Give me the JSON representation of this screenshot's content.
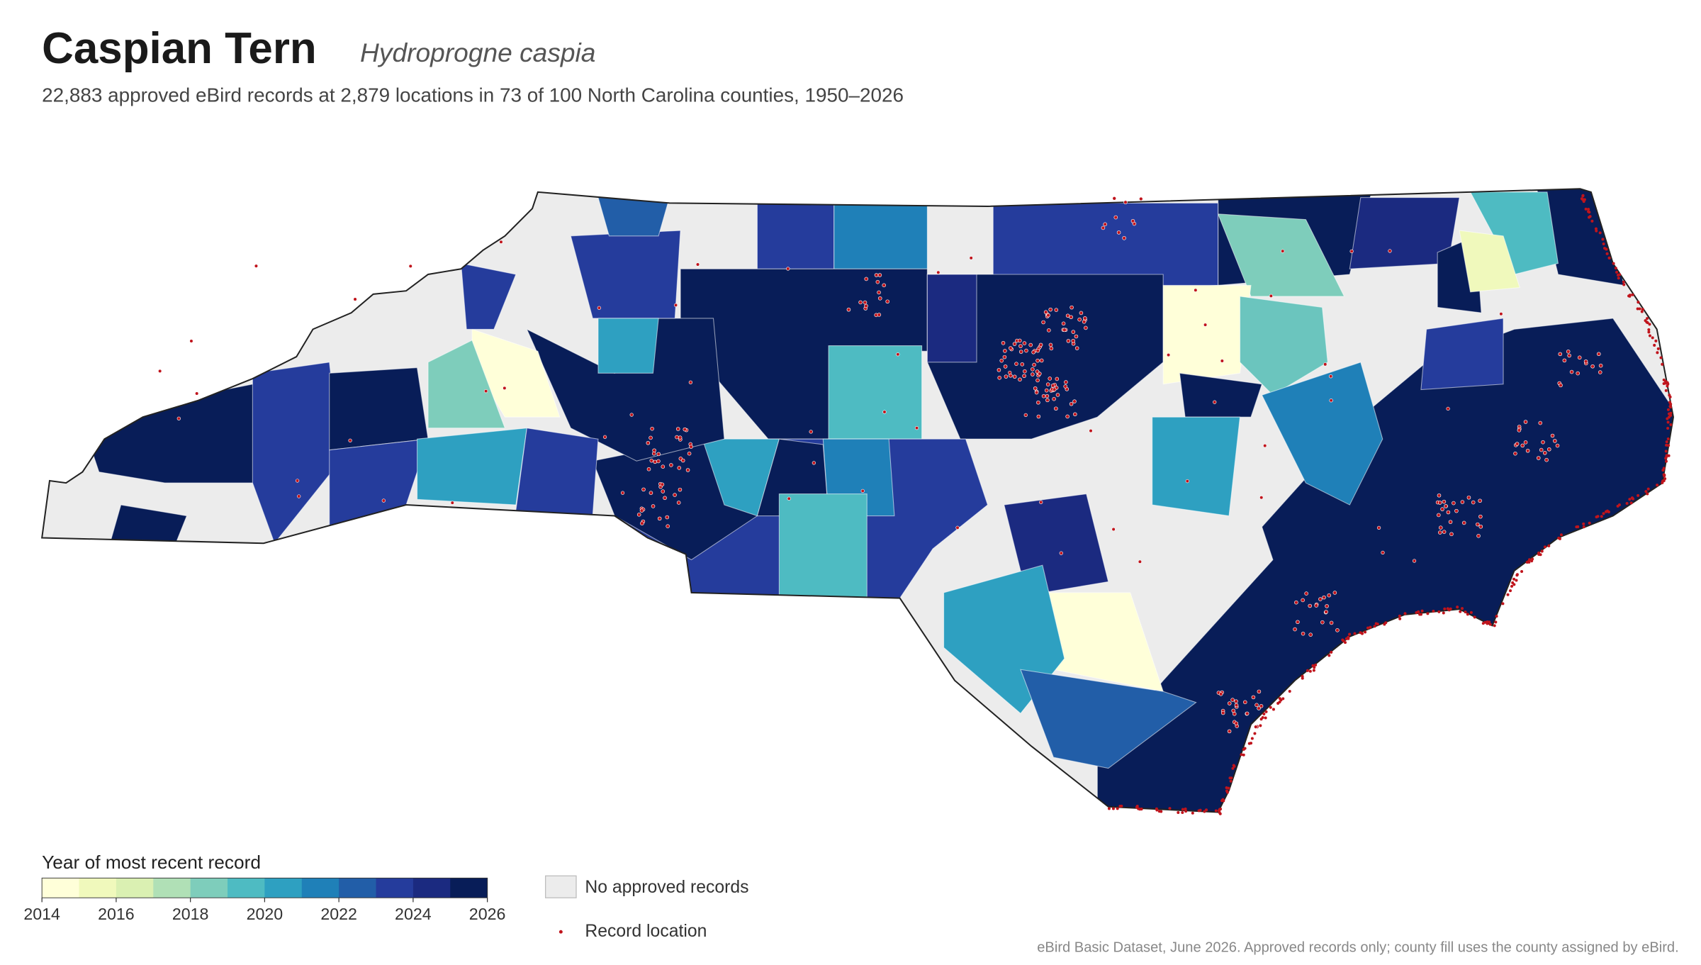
{
  "header": {
    "title": "Caspian Tern",
    "species": "Hydroprogne caspia",
    "subtitle": "22,883 approved eBird records at 2,879 locations in 73 of 100 North Carolina counties, 1950–2026"
  },
  "legend": {
    "title": "Year of most recent record",
    "colors": [
      "#ffffd9",
      "#f0f9bc",
      "#daf0b2",
      "#b0e0b6",
      "#7ecdbb",
      "#4ebbc2",
      "#2ea0c1",
      "#1f80b8",
      "#225ea8",
      "#253c9c",
      "#1b2a80",
      "#081d58"
    ],
    "range": [
      2014,
      2026
    ],
    "ticks": [
      2014,
      2016,
      2018,
      2020,
      2022,
      2024,
      2026
    ],
    "no_data_label": "No approved records",
    "no_data_color": "#ececec",
    "record_label": "Record location",
    "record_color": "#c0141c"
  },
  "source": "eBird Basic Dataset, June 2026. Approved records only; county fill uses the county assigned by eBird."
}
